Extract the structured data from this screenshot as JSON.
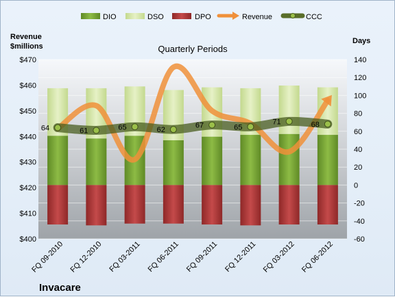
{
  "chart_data": {
    "type": "bar",
    "title": "Quarterly Periods",
    "company": "Invacare",
    "left_axis_title": [
      "Revenue",
      "$millions"
    ],
    "right_axis_title": "Days",
    "categories": [
      "FQ 09-2010",
      "FQ 12-2010",
      "FQ 03-2011",
      "FQ 06-2011",
      "FQ 09-2011",
      "FQ 12-2011",
      "FQ 03-2012",
      "FQ 06-2012"
    ],
    "left_axis": {
      "min": 400,
      "max": 470,
      "step": 10,
      "ticks": [
        "$400",
        "$410",
        "$420",
        "$430",
        "$440",
        "$450",
        "$460",
        "$470"
      ]
    },
    "right_axis": {
      "min": -60,
      "max": 140,
      "step": 20,
      "ticks": [
        "-60",
        "-40",
        "-20",
        "0",
        "20",
        "40",
        "60",
        "80",
        "100",
        "120",
        "140"
      ]
    },
    "legend_position": "top",
    "series": [
      {
        "name": "DIO",
        "kind": "stacked-bar",
        "axis": "days",
        "color": "#7ea83a",
        "values": [
          55,
          52,
          55,
          50,
          54,
          56,
          57,
          56
        ]
      },
      {
        "name": "DSO",
        "kind": "stacked-bar",
        "axis": "days",
        "color": "#dbeab2",
        "values": [
          53,
          56,
          55,
          56,
          55,
          52,
          54,
          53
        ]
      },
      {
        "name": "DPO",
        "kind": "negative-bar",
        "axis": "days",
        "color": "#b03a3a",
        "values": [
          -44,
          -45,
          -43,
          -43,
          -44,
          -45,
          -44,
          -44
        ]
      },
      {
        "name": "Revenue",
        "kind": "line",
        "axis": "revenue",
        "color": "#f0903a",
        "values": [
          443,
          452,
          431,
          467,
          450,
          445,
          434,
          454
        ]
      },
      {
        "name": "CCC",
        "kind": "line",
        "axis": "days",
        "color": "#5a6e2a",
        "values": [
          64,
          61,
          65,
          62,
          67,
          65,
          71,
          68
        ]
      }
    ],
    "ccc_labels": [
      "64",
      "61",
      "65",
      "62",
      "67",
      "65",
      "71",
      "68"
    ]
  }
}
